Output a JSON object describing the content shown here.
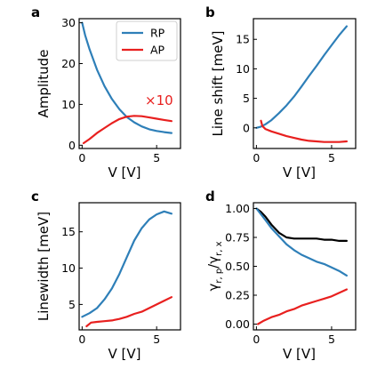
{
  "colors": {
    "rp": "#2e7fb8",
    "ap": "#e8201f",
    "ratio": "#000000"
  },
  "chart_data": [
    {
      "id": "a",
      "panel_label": "a",
      "type": "line",
      "xlabel": "V [V]",
      "ylabel": "Amplitude",
      "xlim": [
        -0.2,
        6.6
      ],
      "ylim": [
        -0.8,
        31
      ],
      "xticks": [
        0,
        5
      ],
      "yticks": [
        0,
        10,
        20,
        30
      ],
      "legend": {
        "placement": "top-right",
        "entries": [
          "RP",
          "AP"
        ]
      },
      "annotation": {
        "text": "×10",
        "color": "#e8201f"
      },
      "series": [
        {
          "name": "RP",
          "color": "#2e7fb8",
          "x": [
            0,
            0.2,
            0.5,
            1.0,
            1.5,
            2.0,
            2.5,
            3.0,
            3.5,
            4.0,
            4.5,
            5.0,
            5.5,
            6.0
          ],
          "y": [
            30,
            27,
            23.5,
            18.5,
            14.5,
            11.3,
            8.8,
            6.9,
            5.6,
            4.6,
            3.9,
            3.5,
            3.2,
            3.0
          ]
        },
        {
          "name": "AP",
          "color": "#e8201f",
          "x": [
            0.1,
            0.5,
            1.0,
            1.5,
            2.0,
            2.5,
            3.0,
            3.5,
            4.0,
            4.5,
            5.0,
            5.5,
            6.0
          ],
          "y": [
            0.5,
            1.5,
            3.0,
            4.2,
            5.4,
            6.4,
            7.0,
            7.2,
            7.1,
            6.8,
            6.5,
            6.2,
            5.9
          ]
        }
      ]
    },
    {
      "id": "b",
      "panel_label": "b",
      "type": "line",
      "xlabel": "V [V]",
      "ylabel": "Line shift [meV]",
      "xlim": [
        -0.2,
        6.6
      ],
      "ylim": [
        -3.5,
        18.5
      ],
      "xticks": [
        0,
        5
      ],
      "yticks": [
        0,
        5,
        10,
        15
      ],
      "series": [
        {
          "name": "",
          "color": "#2e7fb8",
          "x": [
            0,
            0.3,
            0.6,
            1.0,
            1.5,
            2.0,
            2.5,
            3.0,
            3.5,
            4.0,
            4.5,
            5.0,
            5.5,
            6.0
          ],
          "y": [
            0,
            0.2,
            0.6,
            1.3,
            2.5,
            3.8,
            5.3,
            7.0,
            8.8,
            10.5,
            12.3,
            14.0,
            15.7,
            17.2
          ]
        },
        {
          "name": "",
          "color": "#e8201f",
          "x": [
            0.3,
            0.4,
            0.6,
            1.0,
            1.5,
            2.0,
            2.5,
            3.0,
            3.5,
            4.0,
            4.5,
            5.0,
            5.5,
            6.0
          ],
          "y": [
            1.2,
            0.3,
            -0.2,
            -0.6,
            -1.0,
            -1.4,
            -1.7,
            -2.0,
            -2.2,
            -2.3,
            -2.4,
            -2.4,
            -2.4,
            -2.3
          ]
        }
      ]
    },
    {
      "id": "c",
      "panel_label": "c",
      "type": "line",
      "xlabel": "V [V]",
      "ylabel": "Linewidth [meV]",
      "xlim": [
        -0.2,
        6.6
      ],
      "ylim": [
        1.5,
        19
      ],
      "xticks": [
        0,
        5
      ],
      "yticks": [
        5,
        10,
        15
      ],
      "series": [
        {
          "name": "",
          "color": "#2e7fb8",
          "x": [
            0,
            0.5,
            1.0,
            1.5,
            2.0,
            2.5,
            3.0,
            3.5,
            4.0,
            4.5,
            5.0,
            5.5,
            6.0
          ],
          "y": [
            3.3,
            3.8,
            4.5,
            5.7,
            7.2,
            9.2,
            11.5,
            13.8,
            15.5,
            16.7,
            17.4,
            17.8,
            17.5
          ]
        },
        {
          "name": "",
          "color": "#e8201f",
          "x": [
            0.3,
            0.6,
            1.0,
            1.5,
            2.0,
            2.5,
            3.0,
            3.5,
            4.0,
            4.5,
            5.0,
            5.5,
            6.0
          ],
          "y": [
            2.0,
            2.5,
            2.6,
            2.7,
            2.8,
            3.0,
            3.3,
            3.7,
            4.0,
            4.5,
            5.0,
            5.5,
            6.0
          ]
        }
      ]
    },
    {
      "id": "d",
      "panel_label": "d",
      "type": "line",
      "xlabel": "V [V]",
      "ylabel": "γr,p/γr,x",
      "ylabel_parts": {
        "main": "γ",
        "sub1": "r, p",
        "sep": "/",
        "sub2": "r, x"
      },
      "xlim": [
        -0.2,
        6.6
      ],
      "ylim": [
        -0.05,
        1.05
      ],
      "xticks": [
        0,
        5
      ],
      "yticks": [
        0.0,
        0.25,
        0.5,
        0.75,
        1.0
      ],
      "ytick_labels": [
        "0.00",
        "0.25",
        "0.50",
        "0.75",
        "1.00"
      ],
      "series": [
        {
          "name": "",
          "color": "#000000",
          "x": [
            0,
            0.3,
            0.6,
            1.0,
            1.5,
            2.0,
            2.5,
            3.0,
            3.5,
            4.0,
            4.5,
            5.0,
            5.5,
            6.0
          ],
          "y": [
            1.0,
            0.97,
            0.93,
            0.86,
            0.79,
            0.75,
            0.74,
            0.74,
            0.74,
            0.74,
            0.73,
            0.73,
            0.72,
            0.72
          ]
        },
        {
          "name": "",
          "color": "#2e7fb8",
          "x": [
            0,
            0.3,
            0.6,
            1.0,
            1.5,
            2.0,
            2.5,
            3.0,
            3.5,
            4.0,
            4.5,
            5.0,
            5.5,
            6.0
          ],
          "y": [
            1.0,
            0.95,
            0.9,
            0.83,
            0.76,
            0.69,
            0.64,
            0.6,
            0.57,
            0.54,
            0.52,
            0.49,
            0.46,
            0.42
          ]
        },
        {
          "name": "",
          "color": "#e8201f",
          "x": [
            0.1,
            0.5,
            1.0,
            1.5,
            2.0,
            2.5,
            3.0,
            3.5,
            4.0,
            4.5,
            5.0,
            5.5,
            6.0
          ],
          "y": [
            0.0,
            0.03,
            0.06,
            0.08,
            0.11,
            0.13,
            0.16,
            0.18,
            0.2,
            0.22,
            0.24,
            0.27,
            0.3
          ]
        }
      ]
    }
  ]
}
